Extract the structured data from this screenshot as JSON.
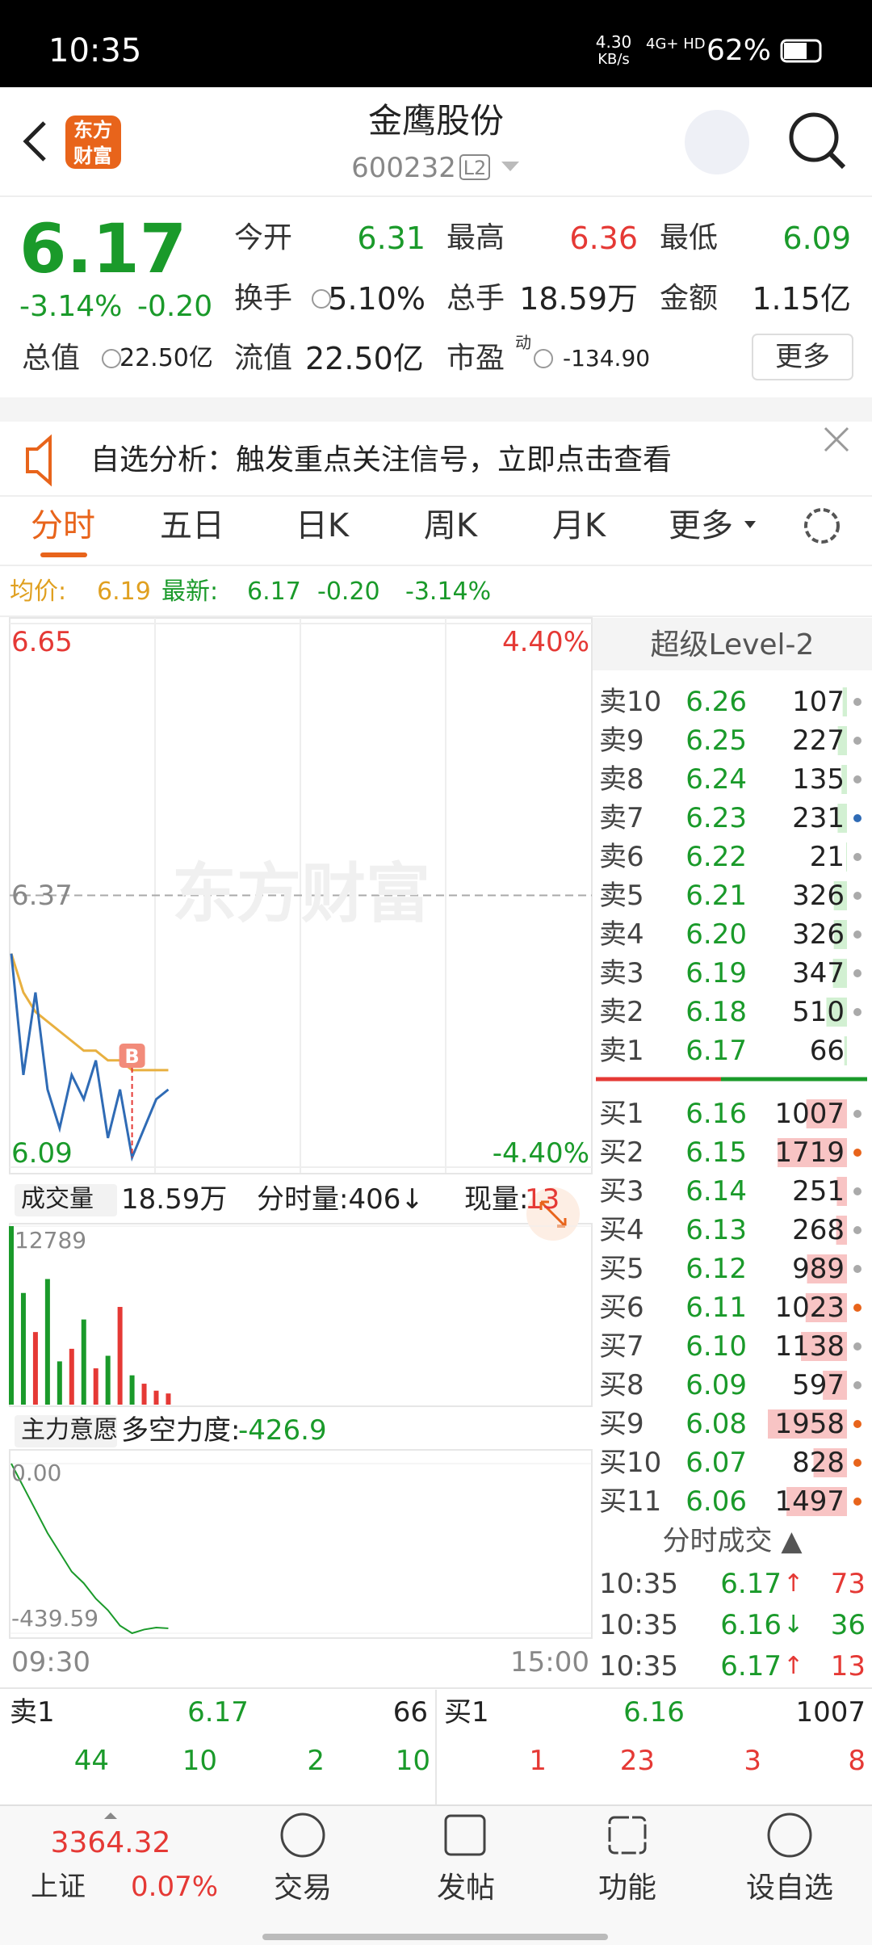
{
  "status_bar": {
    "time": "10:35",
    "speed": "4.30",
    "speed_unit": "KB/s",
    "network": "4G+ HD",
    "battery": "62%"
  },
  "header": {
    "logo_top": "东方",
    "logo_bottom": "财富",
    "title": "金鹰股份",
    "code": "600232",
    "level": "L2"
  },
  "quote": {
    "price": "6.17",
    "change_pct": "-3.14%",
    "change": "-0.20",
    "fields": [
      {
        "label": "今开",
        "value": "6.31"
      },
      {
        "label": "最高",
        "value": "6.36"
      },
      {
        "label": "最低",
        "value": "6.09"
      },
      {
        "label": "换手",
        "value": "5.10%"
      },
      {
        "label": "总手",
        "value": "18.59万"
      },
      {
        "label": "金额",
        "value": "1.15亿"
      },
      {
        "label": "总值",
        "value": "22.50亿"
      },
      {
        "label": "流值",
        "value": "22.50亿"
      },
      {
        "label": "市盈",
        "sup": "动",
        "value": "-134.90"
      }
    ],
    "more": "更多"
  },
  "notice": {
    "text": "自选分析：触发重点关注信号，立即点击查看"
  },
  "tabs": [
    "分时",
    "五日",
    "日K",
    "周K",
    "月K",
    "更多"
  ],
  "info": {
    "avg_label": "均价:",
    "avg": "6.19",
    "latest_label": "最新:",
    "latest": "6.17",
    "change": "-0.20",
    "change_pct": "-3.14%"
  },
  "price_chart": {
    "yticks": [
      6.65,
      6.37,
      6.09
    ],
    "pct_top": "4.40%",
    "pct_bottom": "-4.40%",
    "watermark": "东方财富",
    "marker": "B",
    "price": [
      6.31,
      6.185,
      6.27,
      6.17,
      6.13,
      6.185,
      6.16,
      6.2,
      6.12,
      6.17,
      6.1,
      6.13,
      6.16,
      6.17
    ],
    "avg": [
      6.31,
      6.27,
      6.25,
      6.24,
      6.23,
      6.22,
      6.21,
      6.21,
      6.2,
      6.2,
      6.19,
      6.19,
      6.19,
      6.19
    ],
    "price_color": "#2f6bb5",
    "avg_color": "#e8b040"
  },
  "volume": {
    "label": "成交量",
    "total": "18.59万",
    "period": "分时量:406↓",
    "now_label": "现量:",
    "now": "13",
    "max": 12789,
    "values": [
      12789,
      8000,
      5200,
      9000,
      3100,
      4000,
      6100,
      2600,
      3500,
      7000,
      2100,
      1500,
      1000,
      800
    ]
  },
  "main_force": {
    "label": "主力意愿",
    "strength_label": "多空力度:",
    "strength": "-426.9",
    "top": {
      "value": 0,
      "label": "0.00"
    },
    "bottom": -439.59,
    "values": [
      0,
      -60,
      -120,
      -180,
      -230,
      -280,
      -310,
      -350,
      -380,
      -420,
      -439.59,
      -430,
      -425,
      -426.9
    ]
  },
  "time_axis": [
    "09:30",
    "15:00"
  ],
  "level2": {
    "title": "超级Level-2",
    "asks": [
      {
        "label": "卖10",
        "price": "6.26",
        "vol": 107,
        "dot": "#aaa"
      },
      {
        "label": "卖9",
        "price": "6.25",
        "vol": 227,
        "dot": "#aaa"
      },
      {
        "label": "卖8",
        "price": "6.24",
        "vol": 135,
        "dot": "#aaa"
      },
      {
        "label": "卖7",
        "price": "6.23",
        "vol": 231,
        "dot": "#2f6bb5"
      },
      {
        "label": "卖6",
        "price": "6.22",
        "vol": 21,
        "dot": "#aaa"
      },
      {
        "label": "卖5",
        "price": "6.21",
        "vol": 326,
        "dot": "#aaa"
      },
      {
        "label": "卖4",
        "price": "6.20",
        "vol": 326,
        "dot": "#aaa"
      },
      {
        "label": "卖3",
        "price": "6.19",
        "vol": 347,
        "dot": "#aaa"
      },
      {
        "label": "卖2",
        "price": "6.18",
        "vol": 510,
        "dot": "#aaa"
      },
      {
        "label": "卖1",
        "price": "6.17",
        "vol": 66,
        "dot": null
      }
    ],
    "bids": [
      {
        "label": "买1",
        "price": "6.16",
        "vol": 1007,
        "dot": "#aaa"
      },
      {
        "label": "买2",
        "price": "6.15",
        "vol": 1719,
        "dot": "#e8641b"
      },
      {
        "label": "买3",
        "price": "6.14",
        "vol": 251,
        "dot": "#aaa"
      },
      {
        "label": "买4",
        "price": "6.13",
        "vol": 268,
        "dot": "#aaa"
      },
      {
        "label": "买5",
        "price": "6.12",
        "vol": 989,
        "dot": "#aaa"
      },
      {
        "label": "买6",
        "price": "6.11",
        "vol": 1023,
        "dot": "#e8641b"
      },
      {
        "label": "买7",
        "price": "6.10",
        "vol": 1138,
        "dot": "#aaa"
      },
      {
        "label": "买8",
        "price": "6.09",
        "vol": 597,
        "dot": "#aaa"
      },
      {
        "label": "买9",
        "price": "6.08",
        "vol": 1958,
        "dot": "#e8641b"
      },
      {
        "label": "买10",
        "price": "6.07",
        "vol": 828,
        "dot": "#e8641b"
      },
      {
        "label": "买11",
        "price": "6.06",
        "vol": 1497,
        "dot": "#e8641b"
      }
    ]
  },
  "trades": {
    "title": "分时成交 ▲",
    "rows": [
      {
        "time": "10:35",
        "price": "6.17",
        "dir": "↑",
        "vol": "73"
      },
      {
        "time": "10:35",
        "price": "6.16",
        "dir": "↓",
        "vol": "36"
      },
      {
        "time": "10:35",
        "price": "6.17",
        "dir": "↑",
        "vol": "13"
      }
    ]
  },
  "queue": {
    "ask_label": "卖1",
    "ask_price": "6.17",
    "ask_vol": "66",
    "bid_label": "买1",
    "bid_price": "6.16",
    "bid_vol": "1007",
    "ask_orders": [
      "44",
      "10",
      "2",
      "10"
    ],
    "bid_orders": [
      "1",
      "23",
      "3",
      "8"
    ]
  },
  "nav": {
    "index_value": "3364.32",
    "index_name": "上证",
    "index_pct": "0.07%",
    "items": [
      "交易",
      "发帖",
      "功能",
      "设自选"
    ]
  }
}
